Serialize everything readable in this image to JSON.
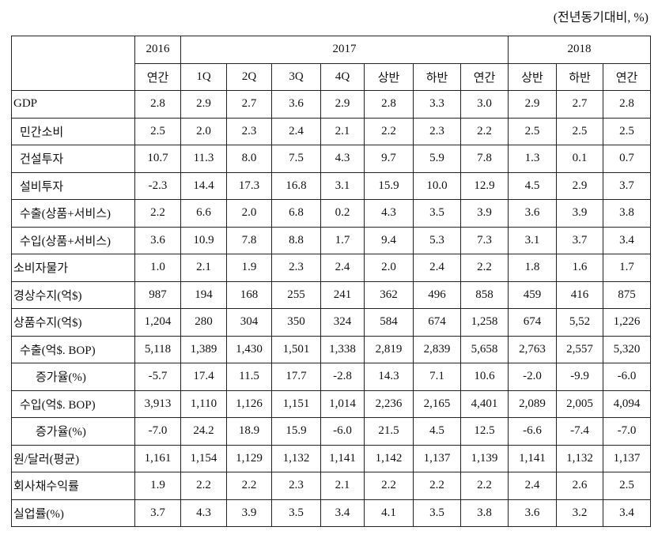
{
  "header": {
    "note": "(전년동기대비, %)"
  },
  "table": {
    "header_rows": [
      [
        "2016",
        "2017",
        "2018"
      ],
      [
        "연간",
        "1Q",
        "2Q",
        "3Q",
        "4Q",
        "상반",
        "하반",
        "연간",
        "상반",
        "하반",
        "연간"
      ]
    ],
    "rows": [
      [
        "GDP",
        "2.8",
        "2.9",
        "2.7",
        "3.6",
        "2.9",
        "2.8",
        "3.3",
        "3.0",
        "2.9",
        "2.7",
        "2.8"
      ],
      [
        "민간소비",
        "2.5",
        "2.0",
        "2.3",
        "2.4",
        "2.1",
        "2.2",
        "2.3",
        "2.2",
        "2.5",
        "2.5",
        "2.5"
      ],
      [
        "건설투자",
        "10.7",
        "11.3",
        "8.0",
        "7.5",
        "4.3",
        "9.7",
        "5.9",
        "7.8",
        "1.3",
        "0.1",
        "0.7"
      ],
      [
        "설비투자",
        "-2.3",
        "14.4",
        "17.3",
        "16.8",
        "3.1",
        "15.9",
        "10.0",
        "12.9",
        "4.5",
        "2.9",
        "3.7"
      ],
      [
        "수출(상품+서비스)",
        "2.2",
        "6.6",
        "2.0",
        "6.8",
        "0.2",
        "4.3",
        "3.5",
        "3.9",
        "3.6",
        "3.9",
        "3.8"
      ],
      [
        "수입(상품+서비스)",
        "3.6",
        "10.9",
        "7.8",
        "8.8",
        "1.7",
        "9.4",
        "5.3",
        "7.3",
        "3.1",
        "3.7",
        "3.4"
      ],
      [
        "소비자물가",
        "1.0",
        "2.1",
        "1.9",
        "2.3",
        "2.4",
        "2.0",
        "2.4",
        "2.2",
        "1.8",
        "1.6",
        "1.7"
      ],
      [
        "경상수지(억$)",
        "987",
        "194",
        "168",
        "255",
        "241",
        "362",
        "496",
        "858",
        "459",
        "416",
        "875"
      ],
      [
        "상품수지(억$)",
        "1,204",
        "280",
        "304",
        "350",
        "324",
        "584",
        "674",
        "1,258",
        "674",
        "5,52",
        "1,226"
      ],
      [
        "수출(억$. BOP)",
        "5,118",
        "1,389",
        "1,430",
        "1,501",
        "1,338",
        "2,819",
        "2,839",
        "5,658",
        "2,763",
        "2,557",
        "5,320"
      ],
      [
        "증가율(%)",
        "-5.7",
        "17.4",
        "11.5",
        "17.7",
        "-2.8",
        "14.3",
        "7.1",
        "10.6",
        "-2.0",
        "-9.9",
        "-6.0"
      ],
      [
        "수입(억$. BOP)",
        "3,913",
        "1,110",
        "1,126",
        "1,151",
        "1,014",
        "2,236",
        "2,165",
        "4,401",
        "2,089",
        "2,005",
        "4,094"
      ],
      [
        "증가율(%)",
        "-7.0",
        "24.2",
        "18.9",
        "15.9",
        "-6.0",
        "21.5",
        "4.5",
        "12.5",
        "-6.6",
        "-7.4",
        "-7.0"
      ],
      [
        "원/달러(평균)",
        "1,161",
        "1,154",
        "1,129",
        "1,132",
        "1,141",
        "1,142",
        "1,137",
        "1,139",
        "1,141",
        "1,132",
        "1,137"
      ],
      [
        "회사채수익률",
        "1.9",
        "2.2",
        "2.2",
        "2.3",
        "2.1",
        "2.2",
        "2.2",
        "2.2",
        "2.4",
        "2.6",
        "2.5"
      ],
      [
        "실업률(%)",
        "3.7",
        "4.3",
        "3.9",
        "3.5",
        "3.4",
        "4.1",
        "3.5",
        "3.8",
        "3.6",
        "3.2",
        "3.4"
      ]
    ]
  }
}
